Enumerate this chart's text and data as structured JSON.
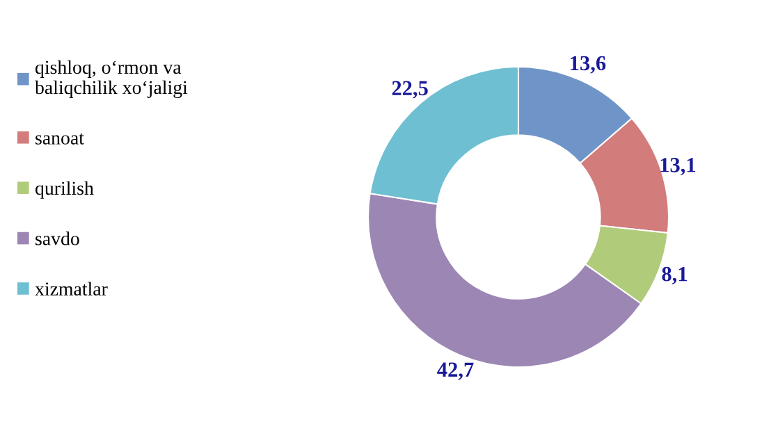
{
  "chart_data": {
    "type": "donut",
    "categories": [
      "qishloq, o‘rmon va\nbaliqchilik xo‘jaligi",
      "sanoat",
      "qurilish",
      "savdo",
      "xizmatlar"
    ],
    "values": [
      13.6,
      13.1,
      8.1,
      42.7,
      22.5
    ],
    "value_labels": [
      "13,6",
      "13,1",
      "8,1",
      "42,7",
      "22,5"
    ],
    "colors": [
      "#6f95c8",
      "#d27c7c",
      "#b0cb7a",
      "#9c86b4",
      "#6fbfd2"
    ],
    "legend": "left"
  }
}
